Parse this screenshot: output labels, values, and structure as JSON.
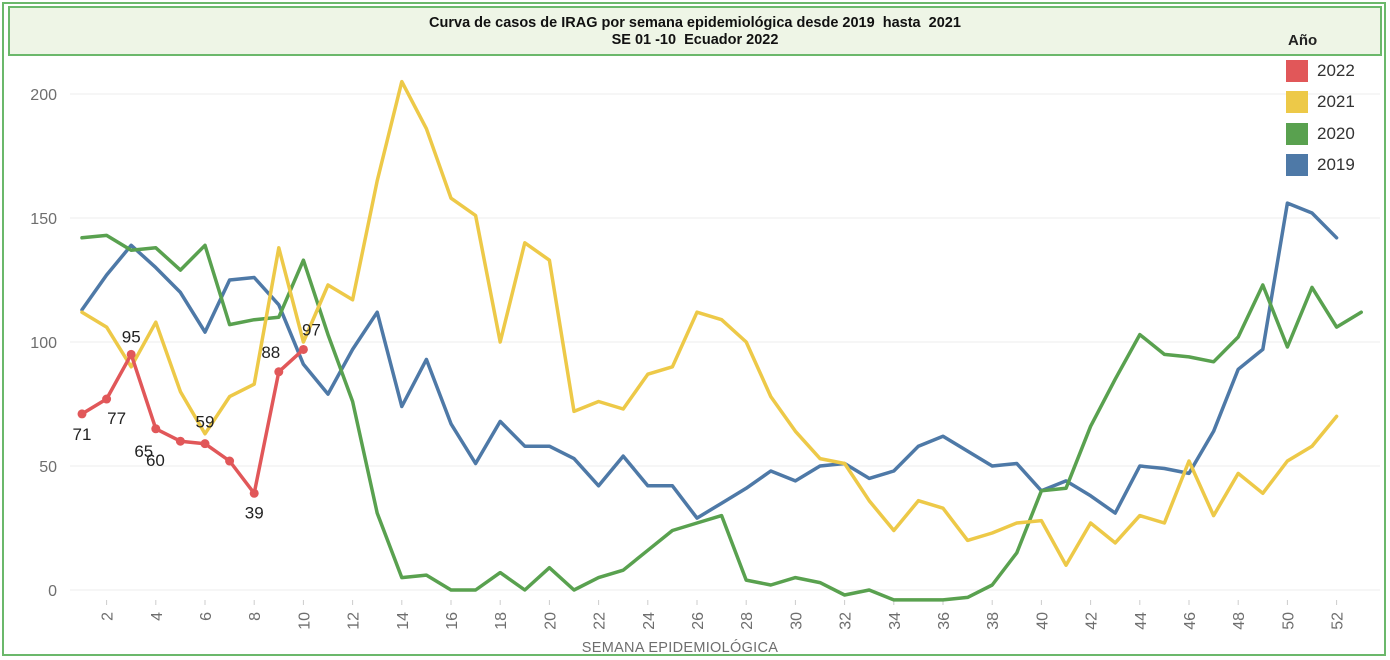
{
  "chart_data": {
    "type": "line",
    "title": "Curva de casos de IRAG por semana epidemiológica desde 2019  hasta  2021",
    "subtitle": "SE 01 -10  Ecuador 2022",
    "xlabel": "SEMANA EPIDEMIOLÓGICA",
    "ylabel": "",
    "ylim": [
      -5,
      212
    ],
    "y_ticks": [
      "0",
      "50",
      "100",
      "150",
      "200"
    ],
    "x_ticks": [
      "2",
      "4",
      "6",
      "8",
      "10",
      "12",
      "14",
      "16",
      "18",
      "20",
      "22",
      "24",
      "26",
      "28",
      "30",
      "32",
      "34",
      "36",
      "38",
      "40",
      "42",
      "44",
      "46",
      "48",
      "50",
      "52"
    ],
    "legend_title": "Año",
    "legend_position": "top-right",
    "grid": true,
    "series": [
      {
        "name": "2022",
        "color": "#e15759",
        "markers": true,
        "x": [
          1,
          2,
          3,
          4,
          5,
          6,
          7,
          8,
          9,
          10
        ],
        "values": [
          71,
          77,
          95,
          65,
          60,
          59,
          52,
          39,
          88,
          97
        ],
        "labels": [
          "71",
          "77",
          "95",
          "65",
          "60",
          "59",
          "",
          "39",
          "88",
          "97"
        ]
      },
      {
        "name": "2021",
        "color": "#edc948",
        "x": [
          1,
          2,
          3,
          4,
          5,
          6,
          7,
          8,
          9,
          10,
          11,
          12,
          13,
          14,
          15,
          16,
          17,
          18,
          19,
          20,
          21,
          22,
          23,
          24,
          25,
          26,
          27,
          28,
          29,
          30,
          31,
          32,
          33,
          34,
          35,
          36,
          37,
          38,
          39,
          40,
          41,
          42,
          43,
          44,
          45,
          46,
          47,
          48,
          49,
          50,
          51,
          52
        ],
        "values": [
          112,
          106,
          90,
          108,
          80,
          63,
          78,
          83,
          138,
          100,
          123,
          117,
          165,
          205,
          186,
          158,
          151,
          100,
          140,
          133,
          72,
          76,
          73,
          87,
          90,
          112,
          109,
          100,
          78,
          64,
          53,
          51,
          36,
          24,
          36,
          33,
          20,
          23,
          27,
          28,
          10,
          27,
          19,
          30,
          27,
          52,
          30,
          47,
          39,
          52,
          58,
          70
        ]
      },
      {
        "name": "2020",
        "color": "#59a14f",
        "x": [
          1,
          2,
          3,
          4,
          5,
          6,
          7,
          8,
          9,
          10,
          11,
          12,
          13,
          14,
          15,
          16,
          17,
          18,
          19,
          20,
          21,
          22,
          23,
          24,
          25,
          26,
          27,
          28,
          29,
          30,
          31,
          32,
          33,
          34,
          35,
          36,
          37,
          38,
          39,
          40,
          41,
          42,
          43,
          44,
          45,
          46,
          47,
          48,
          49,
          50,
          51,
          52,
          53
        ],
        "values": [
          142,
          143,
          137,
          138,
          129,
          139,
          107,
          109,
          110,
          133,
          103,
          76,
          31,
          5,
          6,
          0,
          0,
          7,
          0,
          9,
          0,
          5,
          8,
          16,
          24,
          27,
          30,
          4,
          2,
          5,
          3,
          -2,
          0,
          -4,
          -4,
          -4,
          -3,
          2,
          15,
          40,
          41,
          66,
          85,
          103,
          95,
          94,
          92,
          102,
          123,
          98,
          122,
          106,
          112
        ]
      },
      {
        "name": "2019",
        "color": "#4e79a7",
        "x": [
          1,
          2,
          3,
          4,
          5,
          6,
          7,
          8,
          9,
          10,
          11,
          12,
          13,
          14,
          15,
          16,
          17,
          18,
          19,
          20,
          21,
          22,
          23,
          24,
          25,
          26,
          27,
          28,
          29,
          30,
          31,
          32,
          33,
          34,
          35,
          36,
          37,
          38,
          39,
          40,
          41,
          42,
          43,
          44,
          45,
          46,
          47,
          48,
          49,
          50,
          51,
          52
        ],
        "values": [
          113,
          127,
          139,
          130,
          120,
          104,
          125,
          126,
          115,
          91,
          79,
          97,
          112,
          74,
          93,
          67,
          51,
          68,
          58,
          58,
          53,
          42,
          54,
          42,
          42,
          29,
          35,
          41,
          48,
          44,
          50,
          51,
          45,
          48,
          58,
          62,
          56,
          50,
          51,
          40,
          44,
          38,
          31,
          50,
          49,
          47,
          64,
          89,
          97,
          156,
          152,
          142
        ]
      }
    ]
  }
}
